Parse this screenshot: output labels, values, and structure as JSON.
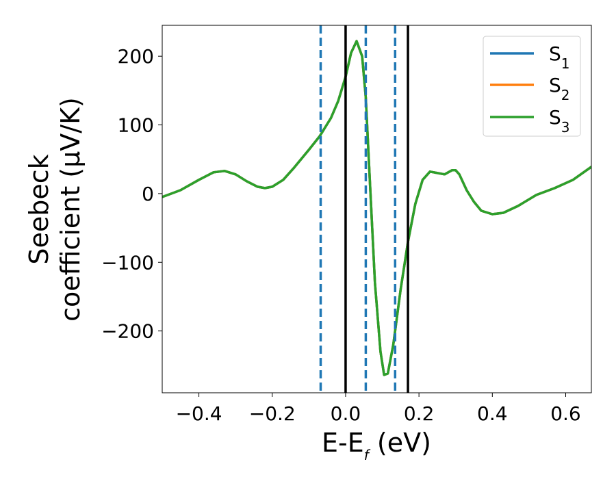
{
  "chart_data": {
    "type": "line",
    "xlabel": {
      "base": "E-E",
      "subscript": "f",
      "suffix": " (eV)"
    },
    "ylabel": {
      "line1": "Seebeck",
      "line2": "coefficient  (μV/K)"
    },
    "xlim": [
      -0.5,
      0.67
    ],
    "ylim": [
      -290,
      245
    ],
    "xticks": [
      -0.4,
      -0.2,
      0.0,
      0.2,
      0.4,
      0.6
    ],
    "xtick_labels": [
      "−0.4",
      "−0.2",
      "0.0",
      "0.2",
      "0.4",
      "0.6"
    ],
    "yticks": [
      -200,
      -100,
      0,
      100,
      200
    ],
    "ytick_labels": [
      "−200",
      "−100",
      "0",
      "100",
      "200"
    ],
    "grid": false,
    "legend": {
      "placement": "top-right",
      "entries": [
        {
          "base": "S",
          "subscript": "1",
          "color": "#1f77b4"
        },
        {
          "base": "S",
          "subscript": "2",
          "color": "#ff7f0e"
        },
        {
          "base": "S",
          "subscript": "3",
          "color": "#2ca02c"
        }
      ]
    },
    "series": [
      {
        "name": "S1",
        "color": "#1f77b4",
        "x": [
          -0.5,
          -0.45,
          -0.4,
          -0.36,
          -0.33,
          -0.3,
          -0.27,
          -0.24,
          -0.22,
          -0.2,
          -0.17,
          -0.14,
          -0.1,
          -0.07,
          -0.04,
          -0.02,
          0.0,
          0.015,
          0.03,
          0.045,
          0.055,
          0.065,
          0.08,
          0.095,
          0.105,
          0.115,
          0.13,
          0.15,
          0.17,
          0.19,
          0.21,
          0.23,
          0.25,
          0.27,
          0.29,
          0.3,
          0.31,
          0.33,
          0.35,
          0.37,
          0.4,
          0.43,
          0.47,
          0.52,
          0.57,
          0.62,
          0.67
        ],
        "y": [
          -5,
          5,
          20,
          31,
          33,
          28,
          18,
          10,
          8,
          10,
          20,
          38,
          64,
          84,
          110,
          135,
          170,
          205,
          222,
          200,
          140,
          30,
          -130,
          -230,
          -264,
          -262,
          -220,
          -140,
          -70,
          -15,
          20,
          32,
          30,
          28,
          34,
          34,
          28,
          5,
          -12,
          -25,
          -30,
          -28,
          -18,
          -2,
          8,
          20,
          39
        ]
      },
      {
        "name": "S2",
        "color": "#ff7f0e",
        "x": [
          -0.5,
          -0.45,
          -0.4,
          -0.36,
          -0.33,
          -0.3,
          -0.27,
          -0.24,
          -0.22,
          -0.2,
          -0.17,
          -0.14,
          -0.1,
          -0.07,
          -0.04,
          -0.02,
          0.0,
          0.015,
          0.03,
          0.045,
          0.055,
          0.065,
          0.08,
          0.095,
          0.105,
          0.115,
          0.13,
          0.15,
          0.17,
          0.19,
          0.21,
          0.23,
          0.25,
          0.27,
          0.29,
          0.3,
          0.31,
          0.33,
          0.35,
          0.37,
          0.4,
          0.43,
          0.47,
          0.52,
          0.57,
          0.62,
          0.67
        ],
        "y": [
          -5,
          5,
          20,
          31,
          33,
          28,
          18,
          10,
          8,
          10,
          20,
          38,
          64,
          84,
          110,
          135,
          170,
          205,
          222,
          200,
          140,
          30,
          -130,
          -230,
          -264,
          -262,
          -220,
          -140,
          -70,
          -15,
          20,
          32,
          30,
          28,
          34,
          34,
          28,
          5,
          -12,
          -25,
          -30,
          -28,
          -18,
          -2,
          8,
          20,
          39
        ]
      },
      {
        "name": "S3",
        "color": "#2ca02c",
        "x": [
          -0.5,
          -0.45,
          -0.4,
          -0.36,
          -0.33,
          -0.3,
          -0.27,
          -0.24,
          -0.22,
          -0.2,
          -0.17,
          -0.14,
          -0.1,
          -0.07,
          -0.04,
          -0.02,
          0.0,
          0.015,
          0.03,
          0.045,
          0.055,
          0.065,
          0.08,
          0.095,
          0.105,
          0.115,
          0.13,
          0.15,
          0.17,
          0.19,
          0.21,
          0.23,
          0.25,
          0.27,
          0.29,
          0.3,
          0.31,
          0.33,
          0.35,
          0.37,
          0.4,
          0.43,
          0.47,
          0.52,
          0.57,
          0.62,
          0.67
        ],
        "y": [
          -5,
          5,
          20,
          31,
          33,
          28,
          18,
          10,
          8,
          10,
          20,
          38,
          64,
          84,
          110,
          135,
          170,
          205,
          222,
          200,
          140,
          30,
          -130,
          -230,
          -264,
          -262,
          -220,
          -140,
          -70,
          -15,
          20,
          32,
          30,
          28,
          34,
          34,
          28,
          5,
          -12,
          -25,
          -30,
          -28,
          -18,
          -2,
          8,
          20,
          39
        ]
      }
    ],
    "vlines": [
      {
        "x": -0.068,
        "color": "#1f77b4",
        "style": "dashed"
      },
      {
        "x": 0.0,
        "color": "#000000",
        "style": "solid"
      },
      {
        "x": 0.055,
        "color": "#1f77b4",
        "style": "dashed"
      },
      {
        "x": 0.135,
        "color": "#1f77b4",
        "style": "dashed"
      },
      {
        "x": 0.17,
        "color": "#000000",
        "style": "solid"
      }
    ]
  }
}
